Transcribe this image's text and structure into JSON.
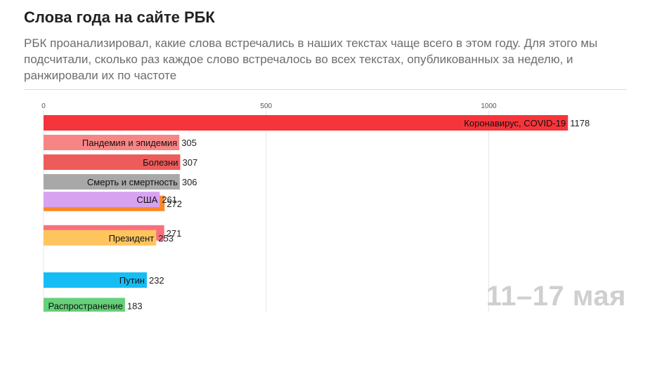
{
  "title": "Слова года на сайте РБК",
  "subtitle": "РБК проанализировал, какие слова встречались в наших текстах чаще всего в этом году. Для этого мы подсчитали, сколько раз каждое слово встречалось во всех текстах, опубликованных за неделю, и ранжировали их по частоте",
  "period": "11–17 мая",
  "chart_data": {
    "type": "bar",
    "orientation": "horizontal",
    "x_ticks": [
      0,
      500,
      1000
    ],
    "xlim": [
      0,
      1178
    ],
    "grid": true,
    "bars": [
      {
        "label": "Коронавирус, COVID-19",
        "value": 1178,
        "color": "#f5353b",
        "rank": 1
      },
      {
        "label": "Пандемия и эпидемия",
        "value": 305,
        "color": "#f78585",
        "rank": 2
      },
      {
        "label": "Болезни",
        "value": 307,
        "color": "#ed5b5b",
        "rank": 3
      },
      {
        "label": "Смерть и смертность",
        "value": 306,
        "color": "#a8a8a8",
        "rank": 4
      },
      {
        "label": "",
        "value": 272,
        "color": "#fa8a26",
        "rank": 5.1
      },
      {
        "label": "США",
        "value": 261,
        "color": "#d7a3f0",
        "rank": 4.9
      },
      {
        "label": "",
        "value": 271,
        "color": "#f8707f",
        "rank": 6.6
      },
      {
        "label": "Президент",
        "value": 253,
        "color": "#fec55f",
        "rank": 6.85
      },
      {
        "label": "Путин",
        "value": 232,
        "color": "#16bdf4",
        "rank": 9
      },
      {
        "label": "Распространение",
        "value": 183,
        "color": "#66d07a",
        "rank": 10.3
      }
    ]
  }
}
